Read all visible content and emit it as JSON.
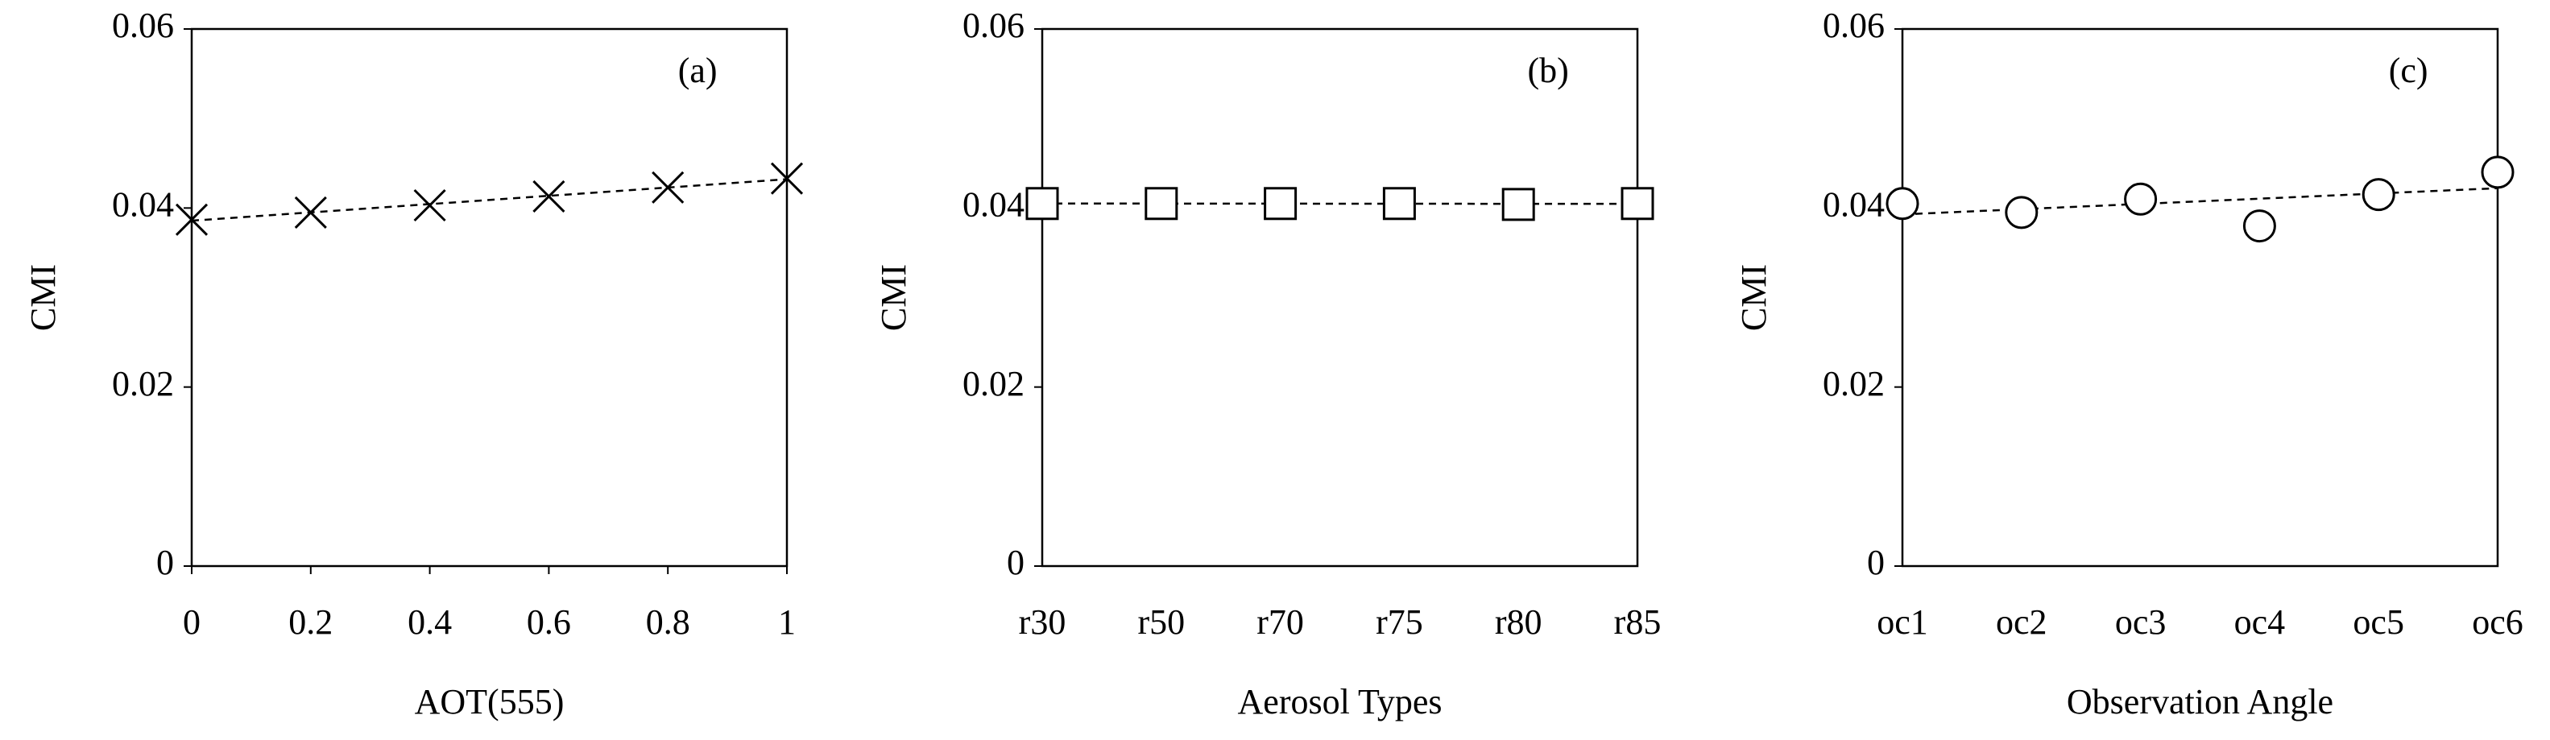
{
  "chart_data": [
    {
      "type": "scatter",
      "annotation": "(a)",
      "xlabel": "AOT(555)",
      "ylabel": "CMI",
      "marker": "x",
      "color": "#000000",
      "trendline": true,
      "x": [
        0,
        0.2,
        0.4,
        0.6,
        0.8,
        1
      ],
      "values": [
        0.0387,
        0.0395,
        0.0403,
        0.0413,
        0.0423,
        0.0433
      ],
      "xlim": [
        0,
        1
      ],
      "xticks": [
        0,
        0.2,
        0.4,
        0.6,
        0.8,
        1
      ],
      "ylim": [
        0,
        0.06
      ],
      "yticks": [
        0,
        0.02,
        0.04,
        0.06
      ]
    },
    {
      "type": "scatter",
      "annotation": "(b)",
      "xlabel": "Aerosol Types",
      "ylabel": "CMI",
      "marker": "square",
      "color": "#000000",
      "trendline": true,
      "categories": [
        "r30",
        "r50",
        "r70",
        "r75",
        "r80",
        "r85"
      ],
      "values": [
        0.0405,
        0.0405,
        0.0405,
        0.0405,
        0.0404,
        0.0405
      ],
      "ylim": [
        0,
        0.06
      ],
      "yticks": [
        0,
        0.02,
        0.04,
        0.06
      ]
    },
    {
      "type": "scatter",
      "annotation": "(c)",
      "xlabel": "Observation Angle",
      "ylabel": "CMI",
      "marker": "circle",
      "color": "#000000",
      "trendline": true,
      "categories": [
        "oc1",
        "oc2",
        "oc3",
        "oc4",
        "oc5",
        "oc6"
      ],
      "values": [
        0.0405,
        0.0395,
        0.041,
        0.038,
        0.0415,
        0.044
      ],
      "ylim": [
        0,
        0.06
      ],
      "yticks": [
        0,
        0.02,
        0.04,
        0.06
      ]
    }
  ]
}
